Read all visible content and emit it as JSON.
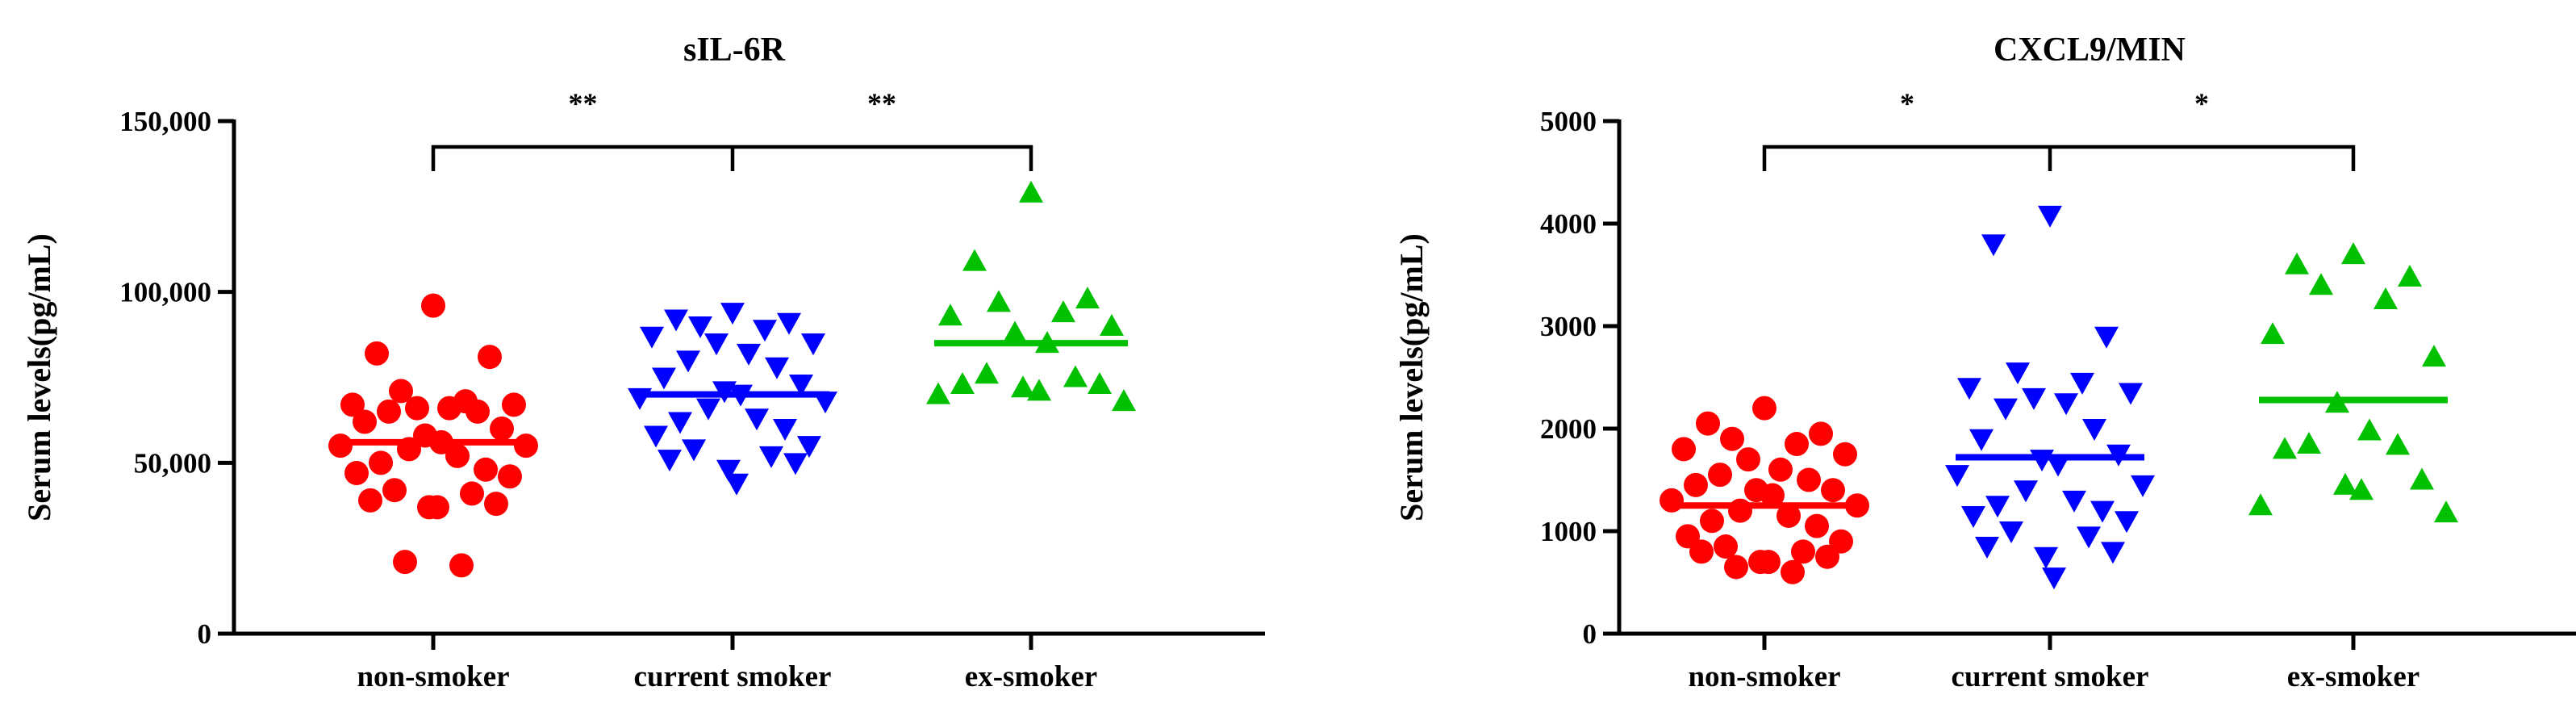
{
  "chart_data": [
    {
      "type": "scatter",
      "title": "sIL-6R",
      "ylabel": "Serum levels(pg/mL)",
      "xlabel": "",
      "ylim": [
        0,
        150000
      ],
      "yticks": [
        0,
        50000,
        100000,
        150000
      ],
      "ytick_labels": [
        "0",
        "50,000",
        "100,000",
        "150,000"
      ],
      "categories": [
        "non-smoker",
        "current smoker",
        "ex-smoker"
      ],
      "significance": [
        {
          "from": "non-smoker",
          "to": "current smoker",
          "label": "**"
        },
        {
          "from": "current smoker",
          "to": "ex-smoker",
          "label": "**"
        }
      ],
      "series": [
        {
          "category": "non-smoker",
          "marker": "circle",
          "color": "#ff0000",
          "median": 56000,
          "values": [
            96000,
            82000,
            81000,
            71000,
            68000,
            67000,
            67000,
            66000,
            66000,
            65000,
            65000,
            62000,
            60000,
            58000,
            56000,
            55000,
            55000,
            54000,
            52000,
            50000,
            48000,
            47000,
            46000,
            42000,
            41000,
            39000,
            38000,
            37000,
            37000,
            21000,
            20000
          ]
        },
        {
          "category": "current smoker",
          "marker": "triangle-down",
          "color": "#0000ff",
          "median": 70000,
          "values": [
            94000,
            92000,
            91000,
            90000,
            89000,
            87000,
            85000,
            85000,
            82000,
            80000,
            78000,
            75000,
            73000,
            71000,
            70000,
            69000,
            68000,
            66000,
            63000,
            62000,
            60000,
            58000,
            55000,
            54000,
            52000,
            51000,
            50000,
            48000,
            44000
          ]
        },
        {
          "category": "ex-smoker",
          "marker": "triangle-up",
          "color": "#00c000",
          "median": 85000,
          "values": [
            129000,
            109000,
            98000,
            97000,
            94000,
            93000,
            90000,
            88000,
            85000,
            76000,
            75000,
            73000,
            73000,
            72000,
            71000,
            70000,
            68000
          ]
        }
      ]
    },
    {
      "type": "scatter",
      "title": "CXCL9/MIN",
      "ylabel": "Serum levels(pg/mL)",
      "xlabel": "",
      "ylim": [
        0,
        5000
      ],
      "yticks": [
        0,
        1000,
        2000,
        3000,
        4000,
        5000
      ],
      "ytick_labels": [
        "0",
        "1000",
        "2000",
        "3000",
        "4000",
        "5000"
      ],
      "categories": [
        "non-smoker",
        "current smoker",
        "ex-smoker"
      ],
      "significance": [
        {
          "from": "non-smoker",
          "to": "current smoker",
          "label": "*"
        },
        {
          "from": "current smoker",
          "to": "ex-smoker",
          "label": "*"
        }
      ],
      "series": [
        {
          "category": "non-smoker",
          "marker": "circle",
          "color": "#ff0000",
          "median": 1250,
          "values": [
            2200,
            2050,
            1950,
            1900,
            1850,
            1800,
            1750,
            1700,
            1600,
            1550,
            1500,
            1450,
            1400,
            1400,
            1350,
            1300,
            1250,
            1200,
            1150,
            1100,
            1050,
            950,
            900,
            850,
            800,
            800,
            750,
            700,
            700,
            650,
            600
          ]
        },
        {
          "category": "current smoker",
          "marker": "triangle-down",
          "color": "#0000ff",
          "median": 1720,
          "values": [
            4080,
            3800,
            2900,
            2550,
            2450,
            2400,
            2350,
            2300,
            2250,
            2200,
            2000,
            1900,
            1750,
            1700,
            1650,
            1550,
            1450,
            1400,
            1300,
            1250,
            1200,
            1150,
            1100,
            1000,
            950,
            850,
            800,
            750,
            550
          ]
        },
        {
          "category": "ex-smoker",
          "marker": "triangle-up",
          "color": "#00c000",
          "median": 2280,
          "values": [
            3700,
            3600,
            3480,
            3400,
            3260,
            2920,
            2700,
            2250,
            1980,
            1850,
            1840,
            1800,
            1500,
            1450,
            1400,
            1250,
            1180
          ]
        }
      ]
    }
  ]
}
